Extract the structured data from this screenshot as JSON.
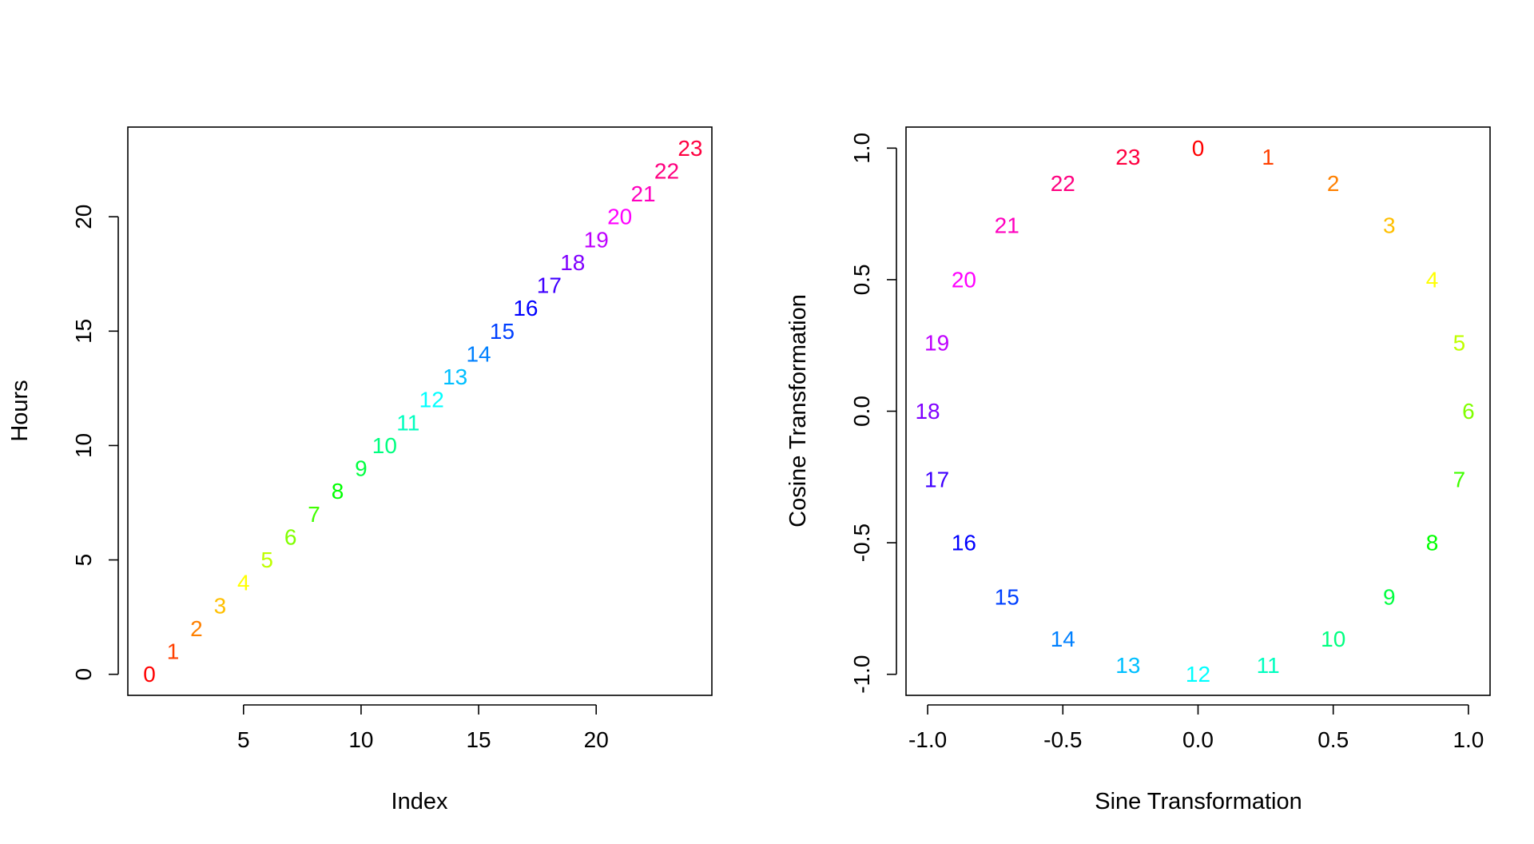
{
  "chart_data": [
    {
      "type": "scatter",
      "title": "",
      "xlabel": "Index",
      "ylabel": "Hours",
      "xlim": [
        0.08,
        24.92
      ],
      "ylim": [
        -0.92,
        23.92
      ],
      "xticks": [
        5,
        10,
        15,
        20
      ],
      "yticks": [
        0,
        5,
        10,
        15,
        20
      ],
      "xtick_labels": [
        "5",
        "10",
        "15",
        "20"
      ],
      "ytick_labels": [
        "0",
        "5",
        "10",
        "15",
        "20"
      ],
      "grid": false,
      "point_labels": [
        "0",
        "1",
        "2",
        "3",
        "4",
        "5",
        "6",
        "7",
        "8",
        "9",
        "10",
        "11",
        "12",
        "13",
        "14",
        "15",
        "16",
        "17",
        "18",
        "19",
        "20",
        "21",
        "22",
        "23"
      ],
      "x": [
        1,
        2,
        3,
        4,
        5,
        6,
        7,
        8,
        9,
        10,
        11,
        12,
        13,
        14,
        15,
        16,
        17,
        18,
        19,
        20,
        21,
        22,
        23,
        24
      ],
      "y": [
        0,
        1,
        2,
        3,
        4,
        5,
        6,
        7,
        8,
        9,
        10,
        11,
        12,
        13,
        14,
        15,
        16,
        17,
        18,
        19,
        20,
        21,
        22,
        23
      ],
      "colors": [
        "#FF0000",
        "#FF4000",
        "#FF8000",
        "#FFBF00",
        "#FFFF00",
        "#BFFF00",
        "#80FF00",
        "#40FF00",
        "#00FF00",
        "#00FF40",
        "#00FF80",
        "#00FFBF",
        "#00FFFF",
        "#00BFFF",
        "#0080FF",
        "#0040FF",
        "#0000FF",
        "#4000FF",
        "#8000FF",
        "#BF00FF",
        "#FF00FF",
        "#FF00BF",
        "#FF0080",
        "#FF0040"
      ]
    },
    {
      "type": "scatter",
      "title": "",
      "xlabel": "Sine Transformation",
      "ylabel": "Cosine Transformation",
      "xlim": [
        -1.08,
        1.08
      ],
      "ylim": [
        -1.08,
        1.08
      ],
      "xticks": [
        -1.0,
        -0.5,
        0.0,
        0.5,
        1.0
      ],
      "yticks": [
        -1.0,
        -0.5,
        0.0,
        0.5,
        1.0
      ],
      "xtick_labels": [
        "-1.0",
        "-0.5",
        "0.0",
        "0.5",
        "1.0"
      ],
      "ytick_labels": [
        "-1.0",
        "-0.5",
        "0.0",
        "0.5",
        "1.0"
      ],
      "grid": false,
      "point_labels": [
        "0",
        "1",
        "2",
        "3",
        "4",
        "5",
        "6",
        "7",
        "8",
        "9",
        "10",
        "11",
        "12",
        "13",
        "14",
        "15",
        "16",
        "17",
        "18",
        "19",
        "20",
        "21",
        "22",
        "23"
      ],
      "x": [
        0.0,
        0.259,
        0.5,
        0.707,
        0.866,
        0.966,
        1.0,
        0.966,
        0.866,
        0.707,
        0.5,
        0.259,
        0.0,
        -0.259,
        -0.5,
        -0.707,
        -0.866,
        -0.966,
        -1.0,
        -0.966,
        -0.866,
        -0.707,
        -0.5,
        -0.259
      ],
      "y": [
        1.0,
        0.966,
        0.866,
        0.707,
        0.5,
        0.259,
        0.0,
        -0.259,
        -0.5,
        -0.707,
        -0.866,
        -0.966,
        -1.0,
        -0.966,
        -0.866,
        -0.707,
        -0.5,
        -0.259,
        0.0,
        0.259,
        0.5,
        0.707,
        0.866,
        0.966
      ],
      "colors": [
        "#FF0000",
        "#FF4000",
        "#FF8000",
        "#FFBF00",
        "#FFFF00",
        "#BFFF00",
        "#80FF00",
        "#40FF00",
        "#00FF00",
        "#00FF40",
        "#00FF80",
        "#00FFBF",
        "#00FFFF",
        "#00BFFF",
        "#0080FF",
        "#0040FF",
        "#0000FF",
        "#4000FF",
        "#8000FF",
        "#BF00FF",
        "#FF00FF",
        "#FF00BF",
        "#FF0080",
        "#FF0040"
      ]
    }
  ]
}
